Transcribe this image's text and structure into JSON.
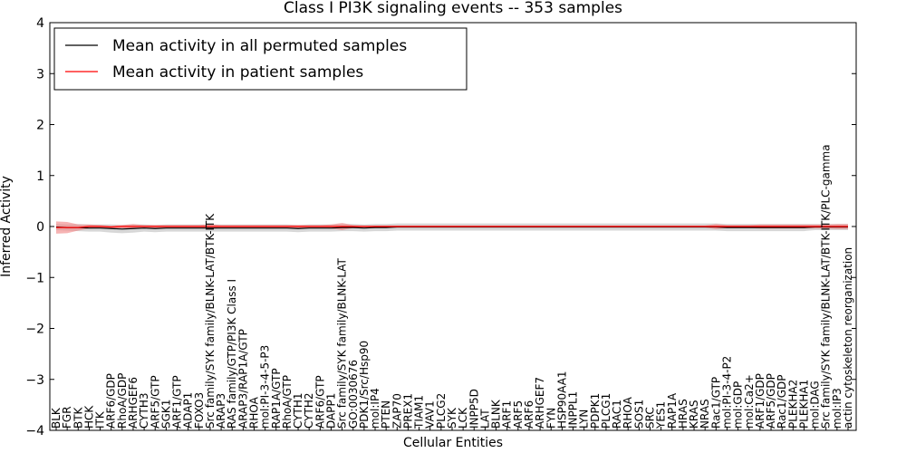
{
  "chart_data": {
    "type": "line",
    "title": "Class I PI3K signaling events -- 353 samples",
    "xlabel": "Cellular Entities",
    "ylabel": "Inferred Activity",
    "ylim": [
      -4,
      4
    ],
    "yticks": [
      -4,
      -3,
      -2,
      -1,
      0,
      1,
      2,
      3,
      4
    ],
    "ytick_labels": [
      "−4",
      "−3",
      "−2",
      "−1",
      "0",
      "1",
      "2",
      "3",
      "4"
    ],
    "grid": false,
    "legend_position": "top-left",
    "colors": {
      "permuted": "#000000",
      "patient": "#ff0000",
      "patient_band": "#f08080",
      "permuted_band": "#bdbdbd"
    },
    "categories": [
      "BLK",
      "FGR",
      "BTK",
      "HCK",
      "ITK",
      "ARF6/GDP",
      "RhoA/GDP",
      "ARHGEF6",
      "CYTH3",
      "ARF5/GTP",
      "SGK1",
      "ARF1/GTP",
      "ADAP1",
      "FOXO3",
      "Src family/SYK family/BLNK-LAT/BTK-ITK",
      "ARAP3",
      "RAS family/GTP/PI3K Class I",
      "ARAP3/RAP1A/GTP",
      "RHOA",
      "mol:PI-3-4-5-P3",
      "RAP1A/GTP",
      "RhoA/GTP",
      "CYTH1",
      "CYTH2",
      "ARF6/GTP",
      "DAPP1",
      "Src family/SYK family/BLNK-LAT",
      "GO:0030676",
      "PDK1/Src/Hsp90",
      "mol:IP4",
      "PTEN",
      "ZAP70",
      "PREX1",
      "TIAM1",
      "VAV1",
      "PLCG2",
      "SYK",
      "LCK",
      "INPP5D",
      "LAT",
      "BLNK",
      "ARF1",
      "ARF5",
      "ARF6",
      "ARHGEF7",
      "FYN",
      "HSP90AA1",
      "INPPL1",
      "LYN",
      "PDPK1",
      "PLCG1",
      "RAC1",
      "RHOA",
      "SOS1",
      "SRC",
      "YES1",
      "RAP1A",
      "HRAS",
      "KRAS",
      "NRAS",
      "Rac1/GTP",
      "mol:PI-3-4-P2",
      "mol:GDP",
      "mol:Ca2+",
      "ARF1/GDP",
      "ARF5/GDP",
      "Rac1/GDP",
      "PLEKHA2",
      "PLEKHA1",
      "mol:DAG",
      "Src family/SYK family/BLNK-LAT/BTK-ITK/PLC-gamma",
      "mol:IP3",
      "actin cytoskeleton reorganization"
    ],
    "series": [
      {
        "name": "Mean activity in all permuted samples",
        "values": [
          -0.01,
          -0.02,
          -0.02,
          -0.03,
          -0.03,
          -0.04,
          -0.05,
          -0.04,
          -0.03,
          -0.04,
          -0.03,
          -0.03,
          -0.03,
          -0.03,
          -0.03,
          -0.03,
          -0.03,
          -0.03,
          -0.03,
          -0.03,
          -0.03,
          -0.03,
          -0.04,
          -0.03,
          -0.03,
          -0.03,
          -0.02,
          -0.02,
          -0.03,
          -0.02,
          -0.02,
          -0.01,
          -0.01,
          -0.01,
          -0.01,
          -0.01,
          -0.01,
          -0.01,
          -0.01,
          -0.01,
          -0.01,
          -0.01,
          -0.01,
          -0.01,
          -0.01,
          -0.01,
          -0.01,
          -0.01,
          -0.01,
          -0.01,
          -0.01,
          -0.01,
          -0.01,
          -0.01,
          -0.01,
          -0.01,
          -0.01,
          -0.01,
          -0.01,
          -0.01,
          -0.01,
          -0.02,
          -0.02,
          -0.02,
          -0.02,
          -0.02,
          -0.02,
          -0.02,
          -0.02,
          -0.01,
          -0.01,
          -0.01,
          -0.01
        ],
        "band": [
          0.06,
          0.06,
          0.07,
          0.07,
          0.07,
          0.08,
          0.08,
          0.08,
          0.07,
          0.07,
          0.07,
          0.07,
          0.07,
          0.07,
          0.07,
          0.07,
          0.07,
          0.07,
          0.07,
          0.07,
          0.07,
          0.07,
          0.07,
          0.07,
          0.07,
          0.07,
          0.07,
          0.07,
          0.07,
          0.07,
          0.07,
          0.07,
          0.07,
          0.07,
          0.07,
          0.07,
          0.07,
          0.07,
          0.07,
          0.07,
          0.07,
          0.07,
          0.07,
          0.07,
          0.07,
          0.07,
          0.07,
          0.07,
          0.07,
          0.07,
          0.07,
          0.07,
          0.07,
          0.07,
          0.07,
          0.07,
          0.07,
          0.07,
          0.07,
          0.07,
          0.07,
          0.07,
          0.07,
          0.07,
          0.07,
          0.07,
          0.07,
          0.07,
          0.07,
          0.06,
          0.06,
          0.06,
          0.06
        ]
      },
      {
        "name": "Mean activity in patient samples",
        "values": [
          -0.02,
          -0.02,
          -0.02,
          0.0,
          0.0,
          -0.01,
          0.0,
          0.0,
          0.0,
          0.0,
          0.0,
          0.0,
          0.0,
          0.0,
          0.0,
          0.0,
          0.0,
          0.0,
          0.0,
          0.0,
          0.0,
          0.0,
          0.0,
          0.0,
          0.0,
          0.0,
          0.0,
          0.0,
          0.0,
          0.0,
          0.0,
          0.0,
          0.0,
          0.0,
          0.0,
          0.0,
          0.0,
          0.0,
          0.0,
          0.0,
          0.0,
          0.0,
          0.0,
          0.0,
          0.0,
          0.0,
          0.0,
          0.0,
          0.0,
          0.0,
          0.0,
          0.0,
          0.0,
          0.0,
          0.0,
          0.0,
          0.0,
          0.0,
          0.0,
          0.0,
          0.0,
          0.0,
          0.0,
          0.0,
          0.0,
          0.0,
          0.0,
          0.0,
          0.0,
          0.0,
          0.0,
          0.0,
          0.0
        ],
        "band": [
          0.12,
          0.11,
          0.06,
          0.04,
          0.03,
          0.03,
          0.03,
          0.05,
          0.03,
          0.03,
          0.03,
          0.03,
          0.03,
          0.03,
          0.05,
          0.03,
          0.03,
          0.03,
          0.03,
          0.03,
          0.03,
          0.03,
          0.03,
          0.03,
          0.03,
          0.04,
          0.07,
          0.03,
          0.02,
          0.02,
          0.02,
          0.02,
          0.02,
          0.02,
          0.02,
          0.02,
          0.02,
          0.02,
          0.02,
          0.02,
          0.02,
          0.02,
          0.02,
          0.02,
          0.02,
          0.02,
          0.02,
          0.02,
          0.02,
          0.02,
          0.02,
          0.02,
          0.02,
          0.02,
          0.02,
          0.02,
          0.02,
          0.02,
          0.02,
          0.02,
          0.05,
          0.03,
          0.03,
          0.03,
          0.04,
          0.04,
          0.04,
          0.04,
          0.04,
          0.04,
          0.04,
          0.05,
          0.05
        ]
      }
    ]
  }
}
